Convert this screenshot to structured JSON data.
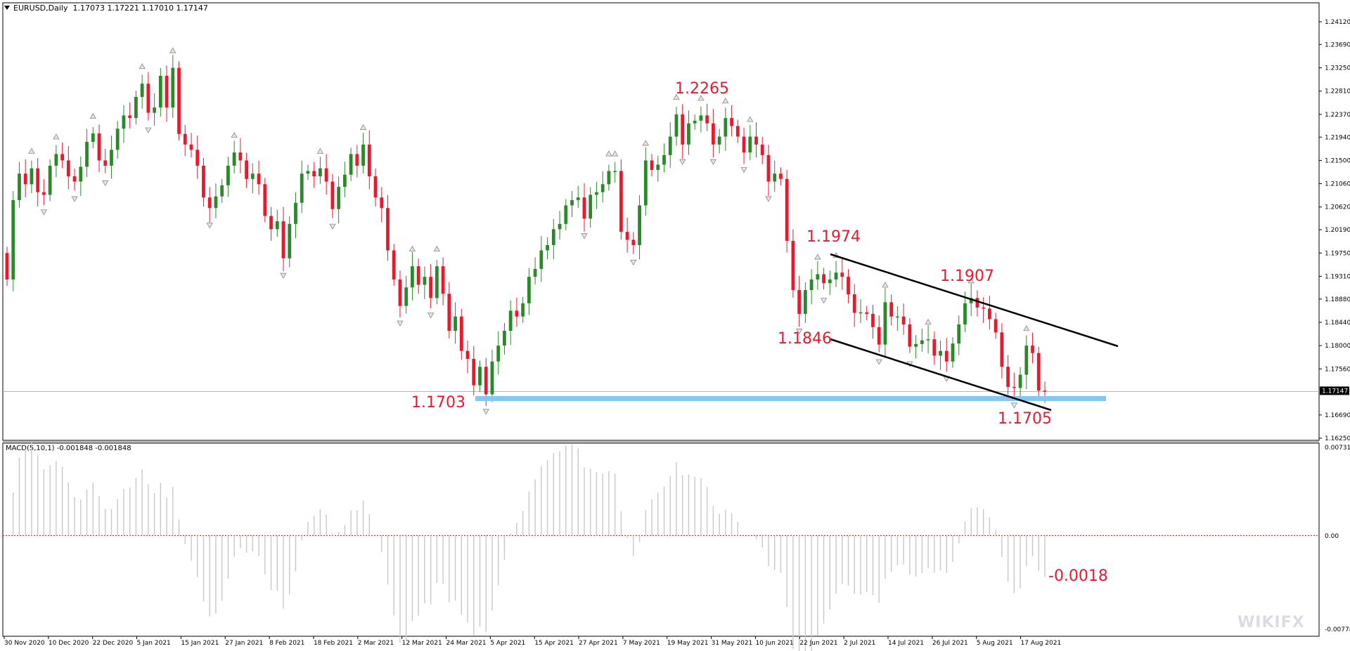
{
  "header": {
    "symbol_title": "EURUSD,Daily",
    "ohlc_text": "1.17073 1.17221 1.17010 1.17147"
  },
  "macd_panel": {
    "title": "MACD(5,10,1) -0.001848 -0.001848"
  },
  "watermark": "WIKIFX",
  "colors": {
    "bull": "#2a8a2a",
    "bear": "#e8192c",
    "annotation": "#e8192c",
    "support_band": "#87c6ee",
    "macd_hist": "#c8c8c8",
    "zero_line": "#cc2a2a"
  },
  "chart_data": [
    {
      "type": "candlestick",
      "title": "EURUSD,Daily",
      "price_axis_ticks": [
        "1.24120",
        "1.23690",
        "1.23250",
        "1.22810",
        "1.22370",
        "1.21940",
        "1.21500",
        "1.21060",
        "1.20620",
        "1.20190",
        "1.19750",
        "1.19310",
        "1.18880",
        "1.18440",
        "1.18000",
        "1.17560",
        "1.16690",
        "1.16250"
      ],
      "current_price": "1.17147",
      "ylim": [
        1.1625,
        1.2434
      ],
      "x_tick_labels": [
        "30 Nov 2020",
        "10 Dec 2020",
        "22 Dec 2020",
        "5 Jan 2021",
        "15 Jan 2021",
        "27 Jan 2021",
        "8 Feb 2021",
        "18 Feb 2021",
        "2 Mar 2021",
        "12 Mar 2021",
        "24 Mar 2021",
        "5 Apr 2021",
        "15 Apr 2021",
        "27 Apr 2021",
        "7 May 2021",
        "19 May 2021",
        "31 May 2021",
        "10 Jun 2021",
        "22 Jun 2021",
        "2 Jul 2021",
        "14 Jul 2021",
        "26 Jul 2021",
        "5 Aug 2021",
        "17 Aug 2021"
      ],
      "closes": [
        1.1925,
        1.2075,
        1.2125,
        1.2105,
        1.2135,
        1.209,
        1.2085,
        1.214,
        1.2162,
        1.215,
        1.212,
        1.211,
        1.2138,
        1.2185,
        1.2201,
        1.215,
        1.214,
        1.217,
        1.221,
        1.2235,
        1.223,
        1.227,
        1.2295,
        1.224,
        1.225,
        1.231,
        1.225,
        1.2325,
        1.22,
        1.218,
        1.217,
        1.214,
        1.208,
        1.206,
        1.2082,
        1.2103,
        1.214,
        1.2165,
        1.215,
        1.2115,
        1.2125,
        1.2105,
        1.2045,
        1.202,
        1.2035,
        1.1965,
        1.203,
        1.207,
        1.2125,
        1.213,
        1.212,
        1.2135,
        1.211,
        1.2058,
        1.21,
        1.2123,
        1.2162,
        1.214,
        1.218,
        1.212,
        1.208,
        1.206,
        1.198,
        1.1925,
        1.1875,
        1.191,
        1.195,
        1.1915,
        1.193,
        1.189,
        1.195,
        1.1898,
        1.1828,
        1.1855,
        1.179,
        1.1775,
        1.1725,
        1.176,
        1.1708,
        1.177,
        1.18,
        1.1828,
        1.1866,
        1.1855,
        1.188,
        1.193,
        1.1945,
        1.198,
        1.199,
        1.202,
        1.203,
        1.2065,
        1.2075,
        1.208,
        1.204,
        1.2085,
        1.209,
        1.2105,
        1.213,
        1.213,
        1.2015,
        1.2,
        1.199,
        1.2065,
        1.215,
        1.2132,
        1.2142,
        1.216,
        1.2195,
        1.2237,
        1.218,
        1.222,
        1.2225,
        1.2235,
        1.222,
        1.218,
        1.2195,
        1.223,
        1.2215,
        1.2195,
        1.2165,
        1.2195,
        1.218,
        1.216,
        1.211,
        1.2125,
        1.2115,
        1.1998,
        1.1905,
        1.186,
        1.1905,
        1.1925,
        1.1935,
        1.1918,
        1.1925,
        1.1938,
        1.193,
        1.1897,
        1.1862,
        1.1863,
        1.186,
        1.1835,
        1.1802,
        1.1882,
        1.1855,
        1.1855,
        1.184,
        1.1798,
        1.1803,
        1.181,
        1.1812,
        1.1781,
        1.179,
        1.177,
        1.1804,
        1.184,
        1.188,
        1.189,
        1.1872,
        1.187,
        1.185,
        1.1825,
        1.176,
        1.1722,
        1.172,
        1.1745,
        1.18,
        1.1786,
        1.1715,
        1.1714
      ],
      "swing_labels": [
        "1.2265",
        "1.1974",
        "1.1907",
        "1.1846",
        "1.1703",
        "1.1705"
      ],
      "support_level": 1.1703,
      "channel_upper": [
        [
          1.1974,
          "22 Jun 2021"
        ],
        [
          1.18,
          "after 17 Aug 2021"
        ]
      ],
      "channel_lower": [
        [
          1.1846,
          "21 Jun 2021"
        ],
        [
          1.1685,
          "18 Aug 2021"
        ]
      ]
    },
    {
      "type": "bar",
      "title": "MACD(5,10,1) -0.001848 -0.001848",
      "axis_ticks": [
        "0.007313",
        "0.00",
        "-0.007787"
      ],
      "ylim": [
        -0.007787,
        0.007313
      ],
      "last_value_label": "-0.0018"
    }
  ]
}
